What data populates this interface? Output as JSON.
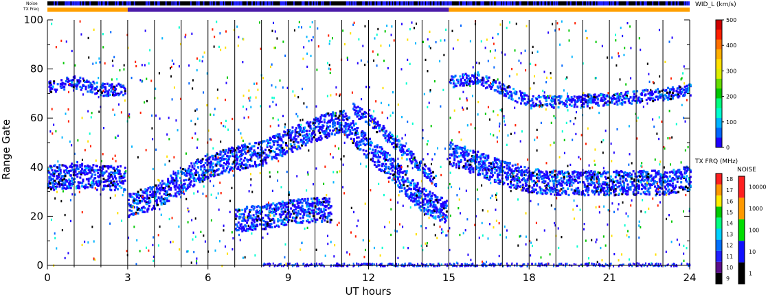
{
  "chart_data": {
    "type": "heatmap",
    "title": "",
    "xlabel": "UT hours",
    "ylabel": "Range Gate",
    "xlim": [
      0,
      24
    ],
    "ylim": [
      0,
      100
    ],
    "x_ticks": [
      "0",
      "3",
      "6",
      "9",
      "12",
      "15",
      "18",
      "21",
      "24"
    ],
    "y_ticks": [
      "0",
      "20",
      "40",
      "60",
      "80",
      "100"
    ],
    "grid": "vertical lines every hour",
    "parameter_label": "WID_L (km/s)",
    "parameter_colorbar": {
      "range": [
        0,
        500
      ],
      "tick_labels": [
        "0",
        "100",
        "200",
        "300",
        "400",
        "500"
      ],
      "colors": [
        "#1f00ff",
        "#0066ff",
        "#00b4ff",
        "#00ffd0",
        "#00ff80",
        "#00c800",
        "#66dd00",
        "#ddee00",
        "#ffe000",
        "#ffb000",
        "#ff7000",
        "#ff2000",
        "#d00000"
      ]
    },
    "status_bars": {
      "noise_label": "Noise",
      "txfreq_label": "TX Freq",
      "noise_dominant": "#000000",
      "noise_secondary": "#2020ff",
      "txfreq_segments": [
        {
          "from": 0,
          "to": 3,
          "color": "#ff9f00"
        },
        {
          "from": 3,
          "to": 15,
          "color": "#4a1aa8"
        },
        {
          "from": 15,
          "to": 24,
          "color": "#ff9f00"
        }
      ]
    },
    "tx_freq_colorbar": {
      "title": "TX FRQ (MHz)",
      "tick_labels": [
        "9",
        "10",
        "11",
        "12",
        "13",
        "14",
        "15",
        "16",
        "17",
        "18"
      ],
      "colors": [
        "#000000",
        "#5a0f8a",
        "#2020ff",
        "#0070ff",
        "#00d2ff",
        "#00ff80",
        "#00cc00",
        "#ffee00",
        "#ff9900",
        "#ff2020"
      ]
    },
    "noise_colorbar": {
      "title": "NOISE",
      "tick_labels": [
        "1",
        "10",
        "100",
        "1000",
        "10000"
      ],
      "colors": [
        "#000000",
        "#1010ff",
        "#00dd00",
        "#ff9900",
        "#ff2020"
      ]
    },
    "echo_bands": [
      {
        "name": "low gate band 0-3 UT",
        "points": [
          [
            0.0,
            36
          ],
          [
            1.0,
            37
          ],
          [
            2.0,
            36
          ],
          [
            2.9,
            36
          ]
        ]
      },
      {
        "name": "rising band 3-9 UT",
        "points": [
          [
            3.0,
            25
          ],
          [
            4.0,
            28
          ],
          [
            5.0,
            35
          ],
          [
            6.0,
            41
          ],
          [
            7.0,
            44
          ],
          [
            8.0,
            46
          ],
          [
            9.0,
            51
          ],
          [
            10.0,
            56
          ],
          [
            11.0,
            59
          ]
        ]
      },
      {
        "name": "descending band 11-15 UT",
        "points": [
          [
            11.0,
            59
          ],
          [
            12.0,
            48
          ],
          [
            13.0,
            38
          ],
          [
            14.0,
            27
          ],
          [
            14.9,
            22
          ]
        ]
      },
      {
        "name": "secondary band 7-10.5 UT",
        "points": [
          [
            7.0,
            19
          ],
          [
            8.0,
            20
          ],
          [
            9.0,
            22
          ],
          [
            10.0,
            23
          ],
          [
            10.6,
            23
          ]
        ]
      },
      {
        "name": "upper descending band 11-14.5 UT",
        "points": [
          [
            11.4,
            64
          ],
          [
            12.0,
            60
          ],
          [
            13.0,
            50
          ],
          [
            14.0,
            40
          ],
          [
            14.5,
            35
          ]
        ]
      },
      {
        "name": "band after 15 UT",
        "points": [
          [
            15.0,
            46
          ],
          [
            16.0,
            42
          ],
          [
            17.0,
            38
          ],
          [
            18.0,
            35
          ],
          [
            19.0,
            34
          ],
          [
            21.0,
            34
          ],
          [
            23.0,
            34
          ],
          [
            24.0,
            36
          ]
        ]
      },
      {
        "name": "upper band 15-24 UT",
        "points": [
          [
            15.0,
            75
          ],
          [
            16.0,
            77
          ],
          [
            17.0,
            72
          ],
          [
            18.0,
            67
          ],
          [
            19.0,
            67
          ],
          [
            21.0,
            68
          ],
          [
            23.0,
            70
          ],
          [
            24.0,
            72
          ]
        ]
      },
      {
        "name": "upper band 0-3 UT",
        "points": [
          [
            0.0,
            73
          ],
          [
            1.0,
            75
          ],
          [
            2.0,
            72
          ],
          [
            2.9,
            72
          ]
        ]
      }
    ],
    "scatter_density": 0.05,
    "random_seed": 4217
  }
}
